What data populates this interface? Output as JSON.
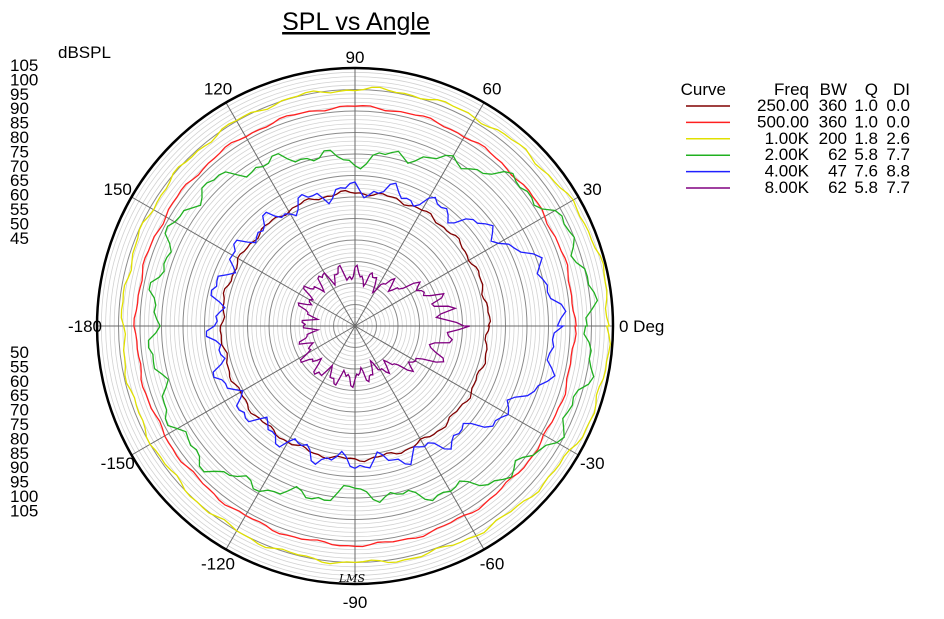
{
  "chart_data": {
    "type": "polar-line",
    "title": "SPL vs Angle",
    "radial_label": "dBSPL",
    "radial_ticks_upper": [
      "105",
      "100",
      "95",
      "90",
      "85",
      "80",
      "75",
      "70",
      "65",
      "60",
      "55",
      "50",
      "45"
    ],
    "radial_ticks_lower": [
      "50",
      "55",
      "60",
      "65",
      "70",
      "75",
      "80",
      "85",
      "90",
      "95",
      "100",
      "105"
    ],
    "angle_ticks": [
      {
        "deg": 0,
        "label": "0 Deg"
      },
      {
        "deg": 30,
        "label": "30"
      },
      {
        "deg": 60,
        "label": "60"
      },
      {
        "deg": 90,
        "label": "90"
      },
      {
        "deg": 120,
        "label": "120"
      },
      {
        "deg": 150,
        "label": "150"
      },
      {
        "deg": 180,
        "label": "-180"
      },
      {
        "deg": -150,
        "label": "-150"
      },
      {
        "deg": -120,
        "label": "-120"
      },
      {
        "deg": -90,
        "label": "-90"
      },
      {
        "deg": -60,
        "label": "-60"
      },
      {
        "deg": -30,
        "label": "-30"
      }
    ],
    "rmin": 45,
    "rmax": 105,
    "legend": {
      "headers": [
        "Curve",
        "Freq",
        "BW",
        "Q",
        "DI"
      ],
      "placement": "right"
    },
    "series": [
      {
        "freq": "250.00",
        "bw": "360",
        "q": "1.0",
        "di": "0.0",
        "color": "#800000",
        "profile": [
          [
            0,
            76
          ],
          [
            30,
            76
          ],
          [
            60,
            76
          ],
          [
            90,
            76
          ],
          [
            120,
            76
          ],
          [
            150,
            76
          ],
          [
            180,
            76
          ]
        ],
        "ripple": 0.4
      },
      {
        "freq": "500.00",
        "bw": "360",
        "q": "1.0",
        "di": "0.0",
        "color": "#ff2020",
        "profile": [
          [
            0,
            96
          ],
          [
            30,
            96
          ],
          [
            60,
            96
          ],
          [
            90,
            96
          ],
          [
            120,
            96
          ],
          [
            150,
            96
          ],
          [
            180,
            96
          ]
        ],
        "ripple": 0.3
      },
      {
        "freq": "1.00K",
        "bw": "200",
        "q": "1.8",
        "di": "2.6",
        "color": "#e0e000",
        "profile": [
          [
            0,
            104
          ],
          [
            20,
            104
          ],
          [
            40,
            102
          ],
          [
            60,
            101
          ],
          [
            90,
            100
          ],
          [
            120,
            100
          ],
          [
            150,
            99.5
          ],
          [
            180,
            99
          ]
        ],
        "ripple": 0.4
      },
      {
        "freq": "2.00K",
        "bw": "62",
        "q": "5.8",
        "di": "7.7",
        "color": "#20b020",
        "profile": [
          [
            0,
            100
          ],
          [
            15,
            100
          ],
          [
            30,
            98
          ],
          [
            45,
            94
          ],
          [
            60,
            89
          ],
          [
            75,
            86
          ],
          [
            90,
            83
          ],
          [
            105,
            86
          ],
          [
            120,
            88
          ],
          [
            135,
            92
          ],
          [
            150,
            93
          ],
          [
            165,
            92
          ],
          [
            180,
            92
          ]
        ],
        "ripple": 1.2
      },
      {
        "freq": "4.00K",
        "bw": "47",
        "q": "7.6",
        "di": "8.8",
        "color": "#2020ff",
        "profile": [
          [
            0,
            92
          ],
          [
            10,
            92
          ],
          [
            20,
            89
          ],
          [
            30,
            85
          ],
          [
            45,
            80
          ],
          [
            60,
            78
          ],
          [
            80,
            77
          ],
          [
            100,
            76.5
          ],
          [
            120,
            76
          ],
          [
            140,
            77
          ],
          [
            160,
            78
          ],
          [
            180,
            77.5
          ]
        ],
        "ripple": 1.5
      },
      {
        "freq": "8.00K",
        "bw": "62",
        "q": "5.8",
        "di": "7.7",
        "color": "#800080",
        "profile": [
          [
            0,
            70
          ],
          [
            5,
            65
          ],
          [
            10,
            69
          ],
          [
            15,
            62
          ],
          [
            20,
            66
          ],
          [
            30,
            62
          ],
          [
            45,
            58
          ],
          [
            60,
            56
          ],
          [
            90,
            57
          ],
          [
            120,
            58
          ],
          [
            150,
            58
          ],
          [
            170,
            56
          ],
          [
            180,
            56
          ]
        ],
        "ripple": 1.5
      }
    ]
  },
  "logo_text": "LMS"
}
